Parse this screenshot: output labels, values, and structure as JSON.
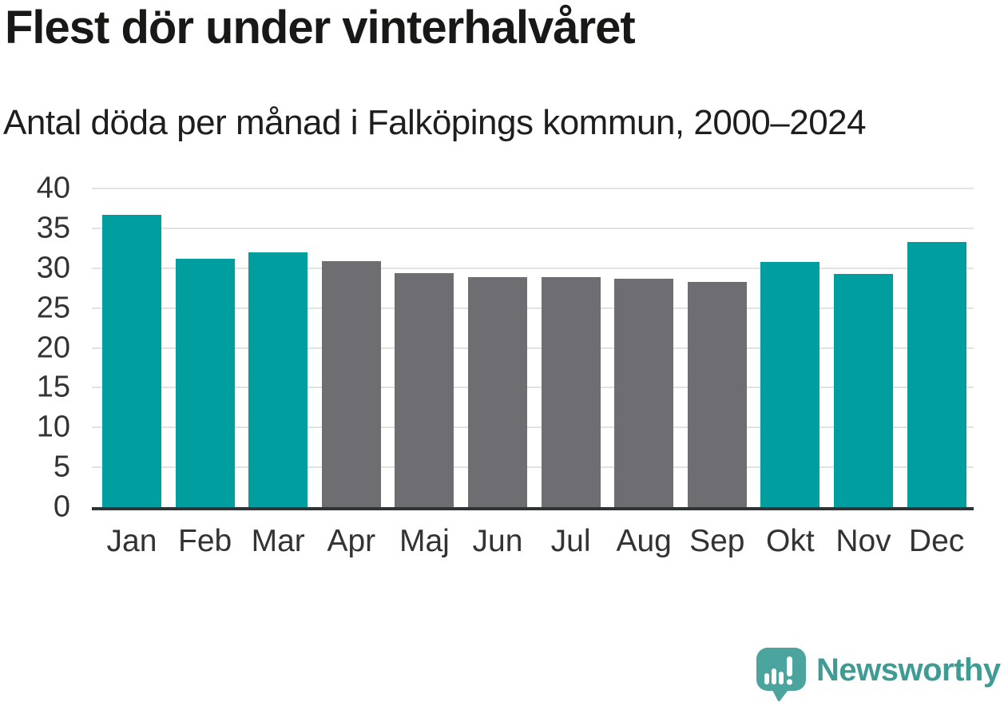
{
  "header": {
    "title": "Flest dör under vinterhalvåret",
    "subtitle": "Antal döda per månad i Falköpings kommun, 2000–2024"
  },
  "chart_data": {
    "type": "bar",
    "categories": [
      "Jan",
      "Feb",
      "Mar",
      "Apr",
      "Maj",
      "Jun",
      "Jul",
      "Aug",
      "Sep",
      "Okt",
      "Nov",
      "Dec"
    ],
    "values": [
      36.7,
      31.2,
      32.0,
      30.9,
      29.4,
      28.9,
      28.9,
      28.7,
      28.3,
      30.8,
      29.3,
      33.3
    ],
    "bar_colors": [
      "#009e9e",
      "#009e9e",
      "#009e9e",
      "#6d6d72",
      "#6d6d72",
      "#6d6d72",
      "#6d6d72",
      "#6d6d72",
      "#6d6d72",
      "#009e9e",
      "#009e9e",
      "#009e9e"
    ],
    "highlighted_months": [
      "Jan",
      "Feb",
      "Mar",
      "Okt",
      "Nov",
      "Dec"
    ],
    "title": "Flest dör under vinterhalvåret",
    "subtitle": "Antal döda per månad i Falköpings kommun, 2000–2024",
    "xlabel": "",
    "ylabel": "",
    "ylim": [
      0,
      40
    ],
    "yticks": [
      0,
      5,
      10,
      15,
      20,
      25,
      30,
      35,
      40
    ],
    "grid": true,
    "legend_position": "none"
  },
  "branding": {
    "logo_text": "Newsworthy",
    "logo_text_color": "#3f9c95",
    "logo_mark_color": "#4ba49d"
  },
  "colors": {
    "highlight_teal": "#009e9e",
    "neutral_gray": "#6d6d72",
    "axis_line": "#2e3436",
    "gridline": "#e2e2e2",
    "tick_label": "#333333",
    "title_text": "#181816"
  }
}
